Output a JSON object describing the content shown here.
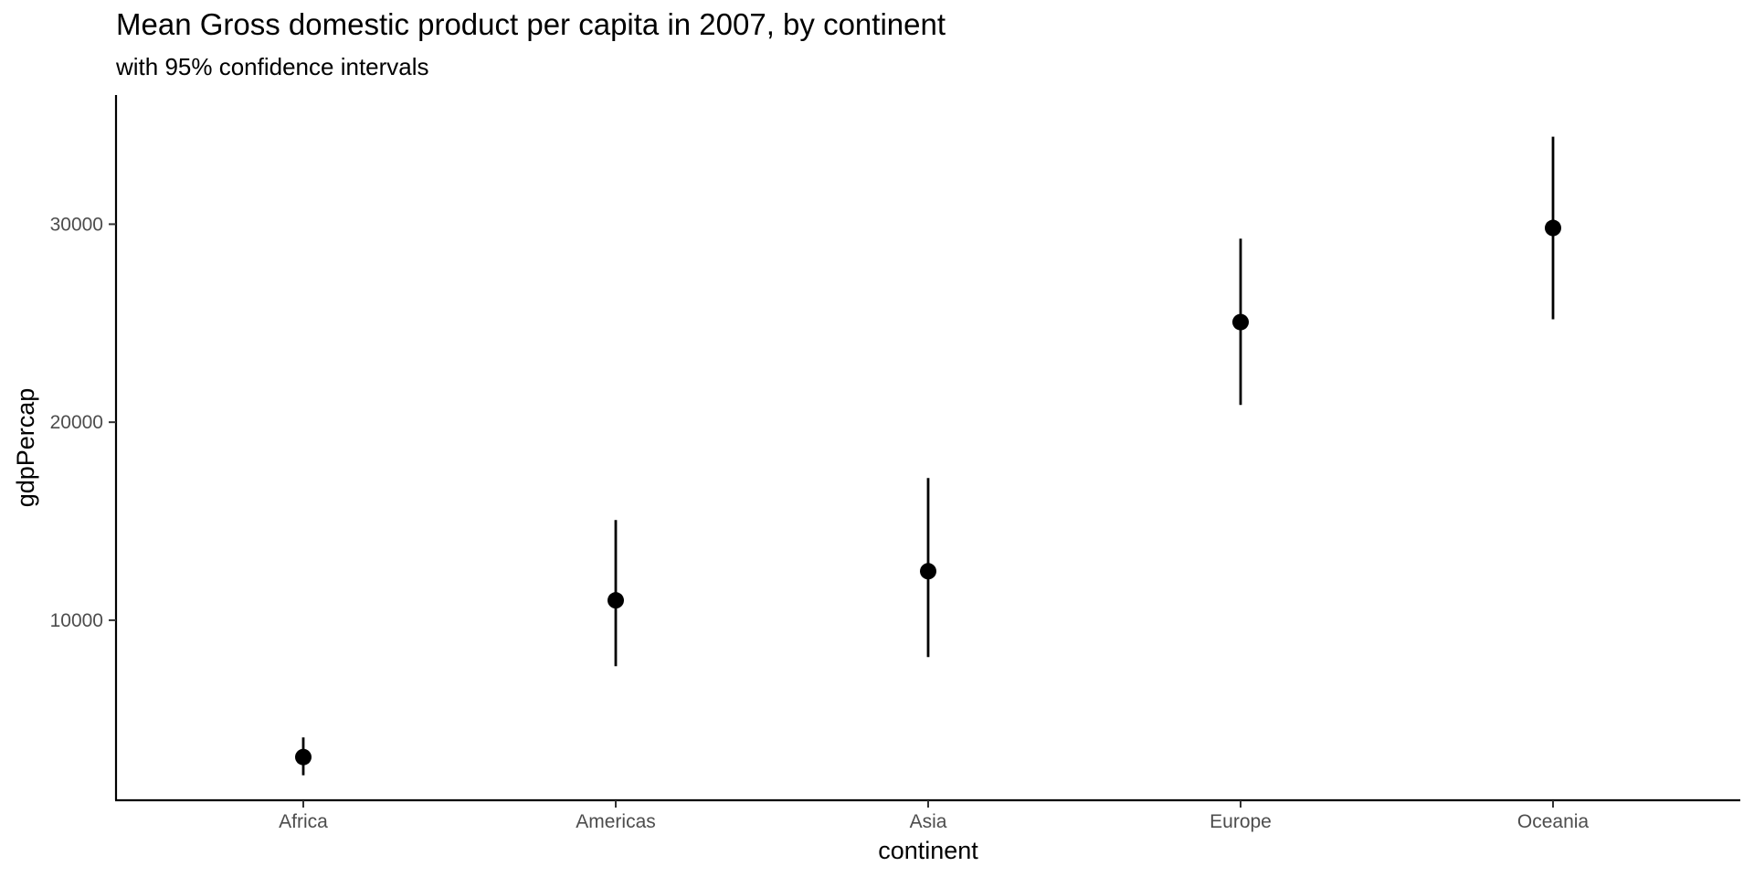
{
  "chart_data": {
    "type": "scatter",
    "title": "Mean Gross domestic product per capita in 2007, by continent",
    "subtitle": "with 95% confidence intervals",
    "xlabel": "continent",
    "ylabel": "gdpPercap",
    "categories": [
      "Africa",
      "Americas",
      "Asia",
      "Europe",
      "Oceania"
    ],
    "values": [
      3089,
      11003,
      12473,
      25054,
      29810
    ],
    "ci_lower": [
      2170,
      7680,
      8140,
      20870,
      25200
    ],
    "ci_upper": [
      4080,
      15060,
      17180,
      29270,
      34420
    ],
    "y_ticks": [
      10000,
      20000,
      30000
    ],
    "y_tick_labels": [
      "10000",
      "20000",
      "30000"
    ],
    "ylim": [
      907,
      36524
    ],
    "grid": false,
    "colors": {
      "points": "#000000",
      "error_bars": "#000000",
      "axes": "#000000",
      "tick_labels": "#4d4d4d"
    }
  }
}
